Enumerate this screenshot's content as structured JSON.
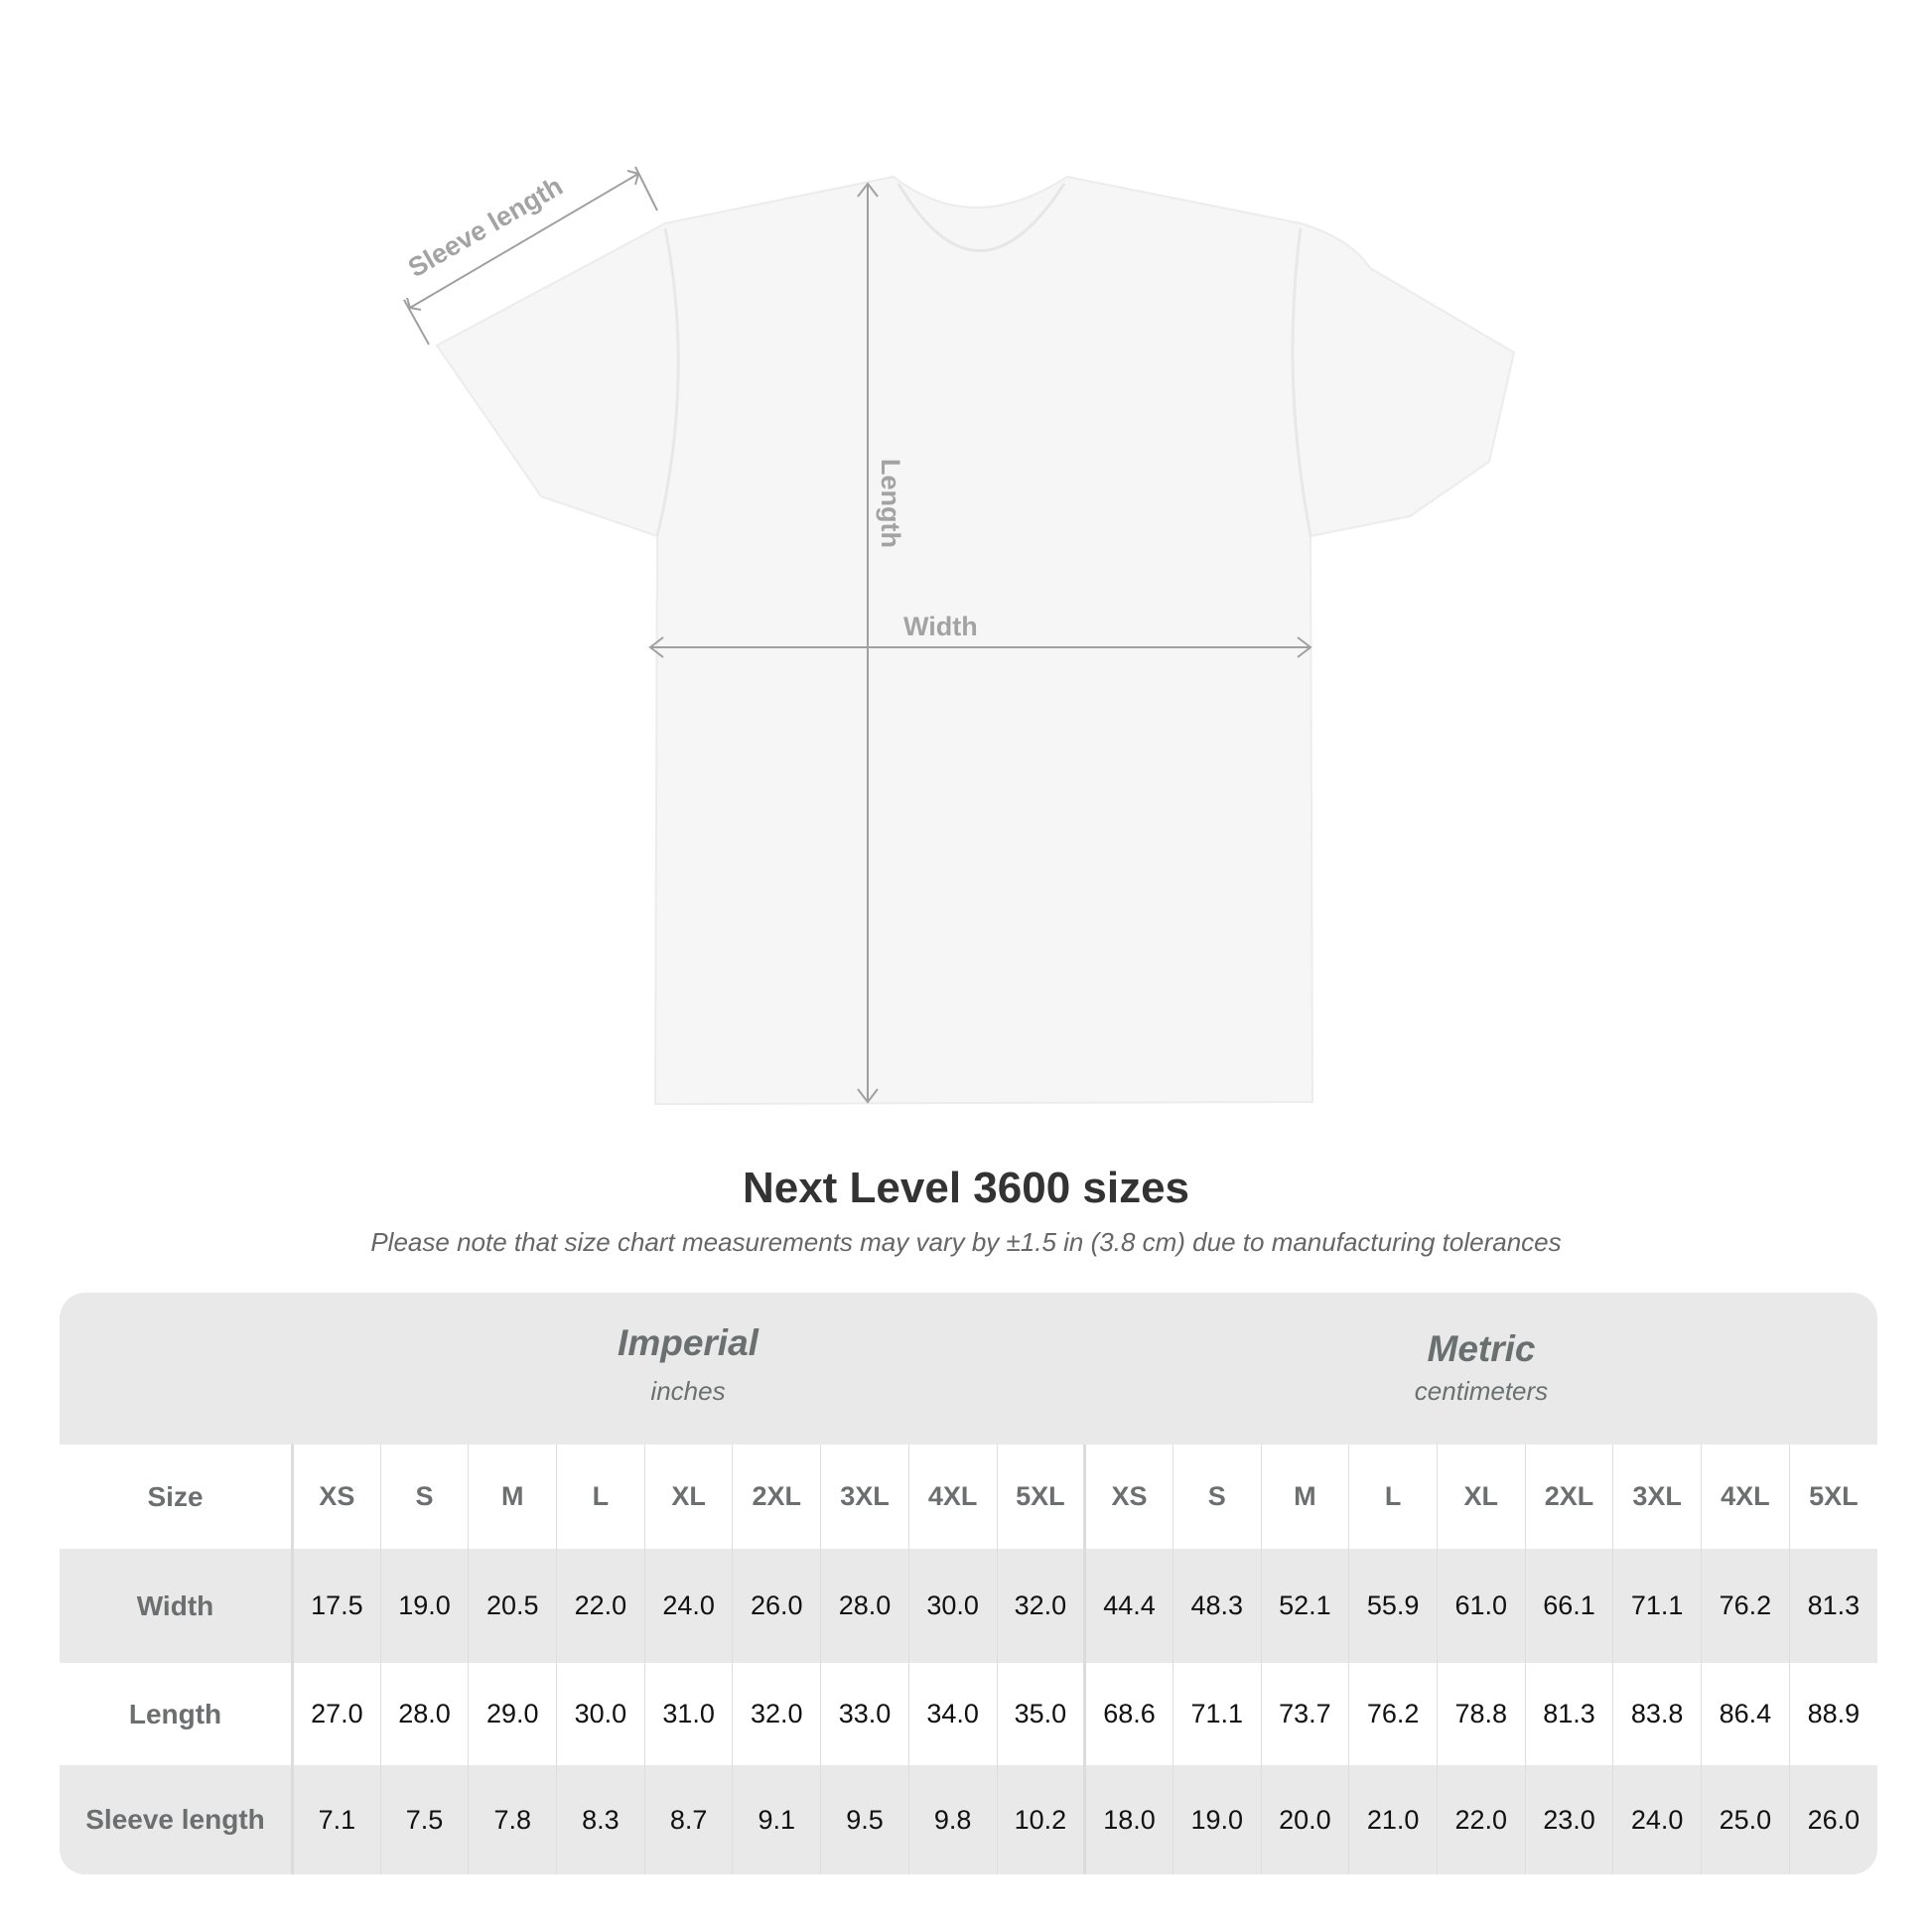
{
  "diagram": {
    "labels": {
      "sleeve": "Sleeve length",
      "length": "Length",
      "width": "Width"
    },
    "colors": {
      "shirt": "#f7f7f7",
      "lines": "#a0a0a0"
    }
  },
  "title": "Next Level 3600 sizes",
  "subtitle": "Please note that size chart measurements may vary by ±1.5 in (3.8 cm) due to manufacturing tolerances",
  "table": {
    "imperial": {
      "name": "Imperial",
      "unit": "inches"
    },
    "metric": {
      "name": "Metric",
      "unit": "centimeters"
    },
    "size_label": "Size",
    "sizes": [
      "XS",
      "S",
      "M",
      "L",
      "XL",
      "2XL",
      "3XL",
      "4XL",
      "5XL"
    ],
    "rows": [
      {
        "label": "Width",
        "imperial": [
          "17.5",
          "19.0",
          "20.5",
          "22.0",
          "24.0",
          "26.0",
          "28.0",
          "30.0",
          "32.0"
        ],
        "metric": [
          "44.4",
          "48.3",
          "52.1",
          "55.9",
          "61.0",
          "66.1",
          "71.1",
          "76.2",
          "81.3"
        ]
      },
      {
        "label": "Length",
        "imperial": [
          "27.0",
          "28.0",
          "29.0",
          "30.0",
          "31.0",
          "32.0",
          "33.0",
          "34.0",
          "35.0"
        ],
        "metric": [
          "68.6",
          "71.1",
          "73.7",
          "76.2",
          "78.8",
          "81.3",
          "83.8",
          "86.4",
          "88.9"
        ]
      },
      {
        "label": "Sleeve length",
        "imperial": [
          "7.1",
          "7.5",
          "7.8",
          "8.3",
          "8.7",
          "9.1",
          "9.5",
          "9.8",
          "10.2"
        ],
        "metric": [
          "18.0",
          "19.0",
          "20.0",
          "21.0",
          "22.0",
          "23.0",
          "24.0",
          "25.0",
          "26.0"
        ]
      }
    ]
  }
}
